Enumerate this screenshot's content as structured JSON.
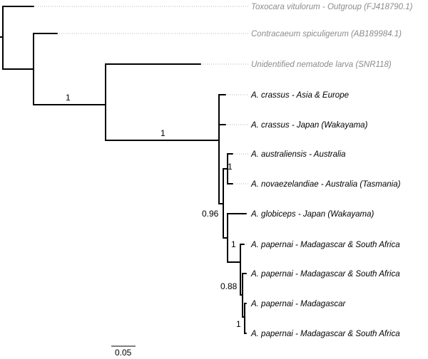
{
  "tree": {
    "taxa": [
      {
        "label": "Toxocara vitulorum - Outgroup (FJ418790.1)",
        "group": "outgroup"
      },
      {
        "label": "Contracaeum spiculigerum (AB189984.1)",
        "group": "outgroup"
      },
      {
        "label": "Unidentified nematode larva (SNR118)",
        "group": "outgroup"
      },
      {
        "label": "A. crassus - Asia & Europe",
        "group": "ingroup"
      },
      {
        "label": "A. crassus - Japan (Wakayama)",
        "group": "ingroup"
      },
      {
        "label": "A. australiensis - Australia",
        "group": "ingroup"
      },
      {
        "label": "A. novaezelandiae - Australia (Tasmania)",
        "group": "ingroup"
      },
      {
        "label": "A. globiceps - Japan (Wakayama)",
        "group": "ingroup"
      },
      {
        "label": "A. papernai - Madagascar & South Africa",
        "group": "ingroup"
      },
      {
        "label": "A. papernai - Madagascar & South Africa",
        "group": "ingroup"
      },
      {
        "label": "A. papernai  - Madagascar",
        "group": "ingroup"
      },
      {
        "label": "A. papernai - Madagascar & South Africa",
        "group": "ingroup"
      }
    ],
    "support_values": [
      "1",
      "1",
      "1",
      "0.96",
      "1",
      "0.88",
      "1"
    ],
    "scale_bar": {
      "label": "0.05",
      "length": 0.05
    },
    "colors": {
      "outgroup_label": "#8c8c8c",
      "ingroup_label": "#000000",
      "branch": "#000000"
    }
  }
}
